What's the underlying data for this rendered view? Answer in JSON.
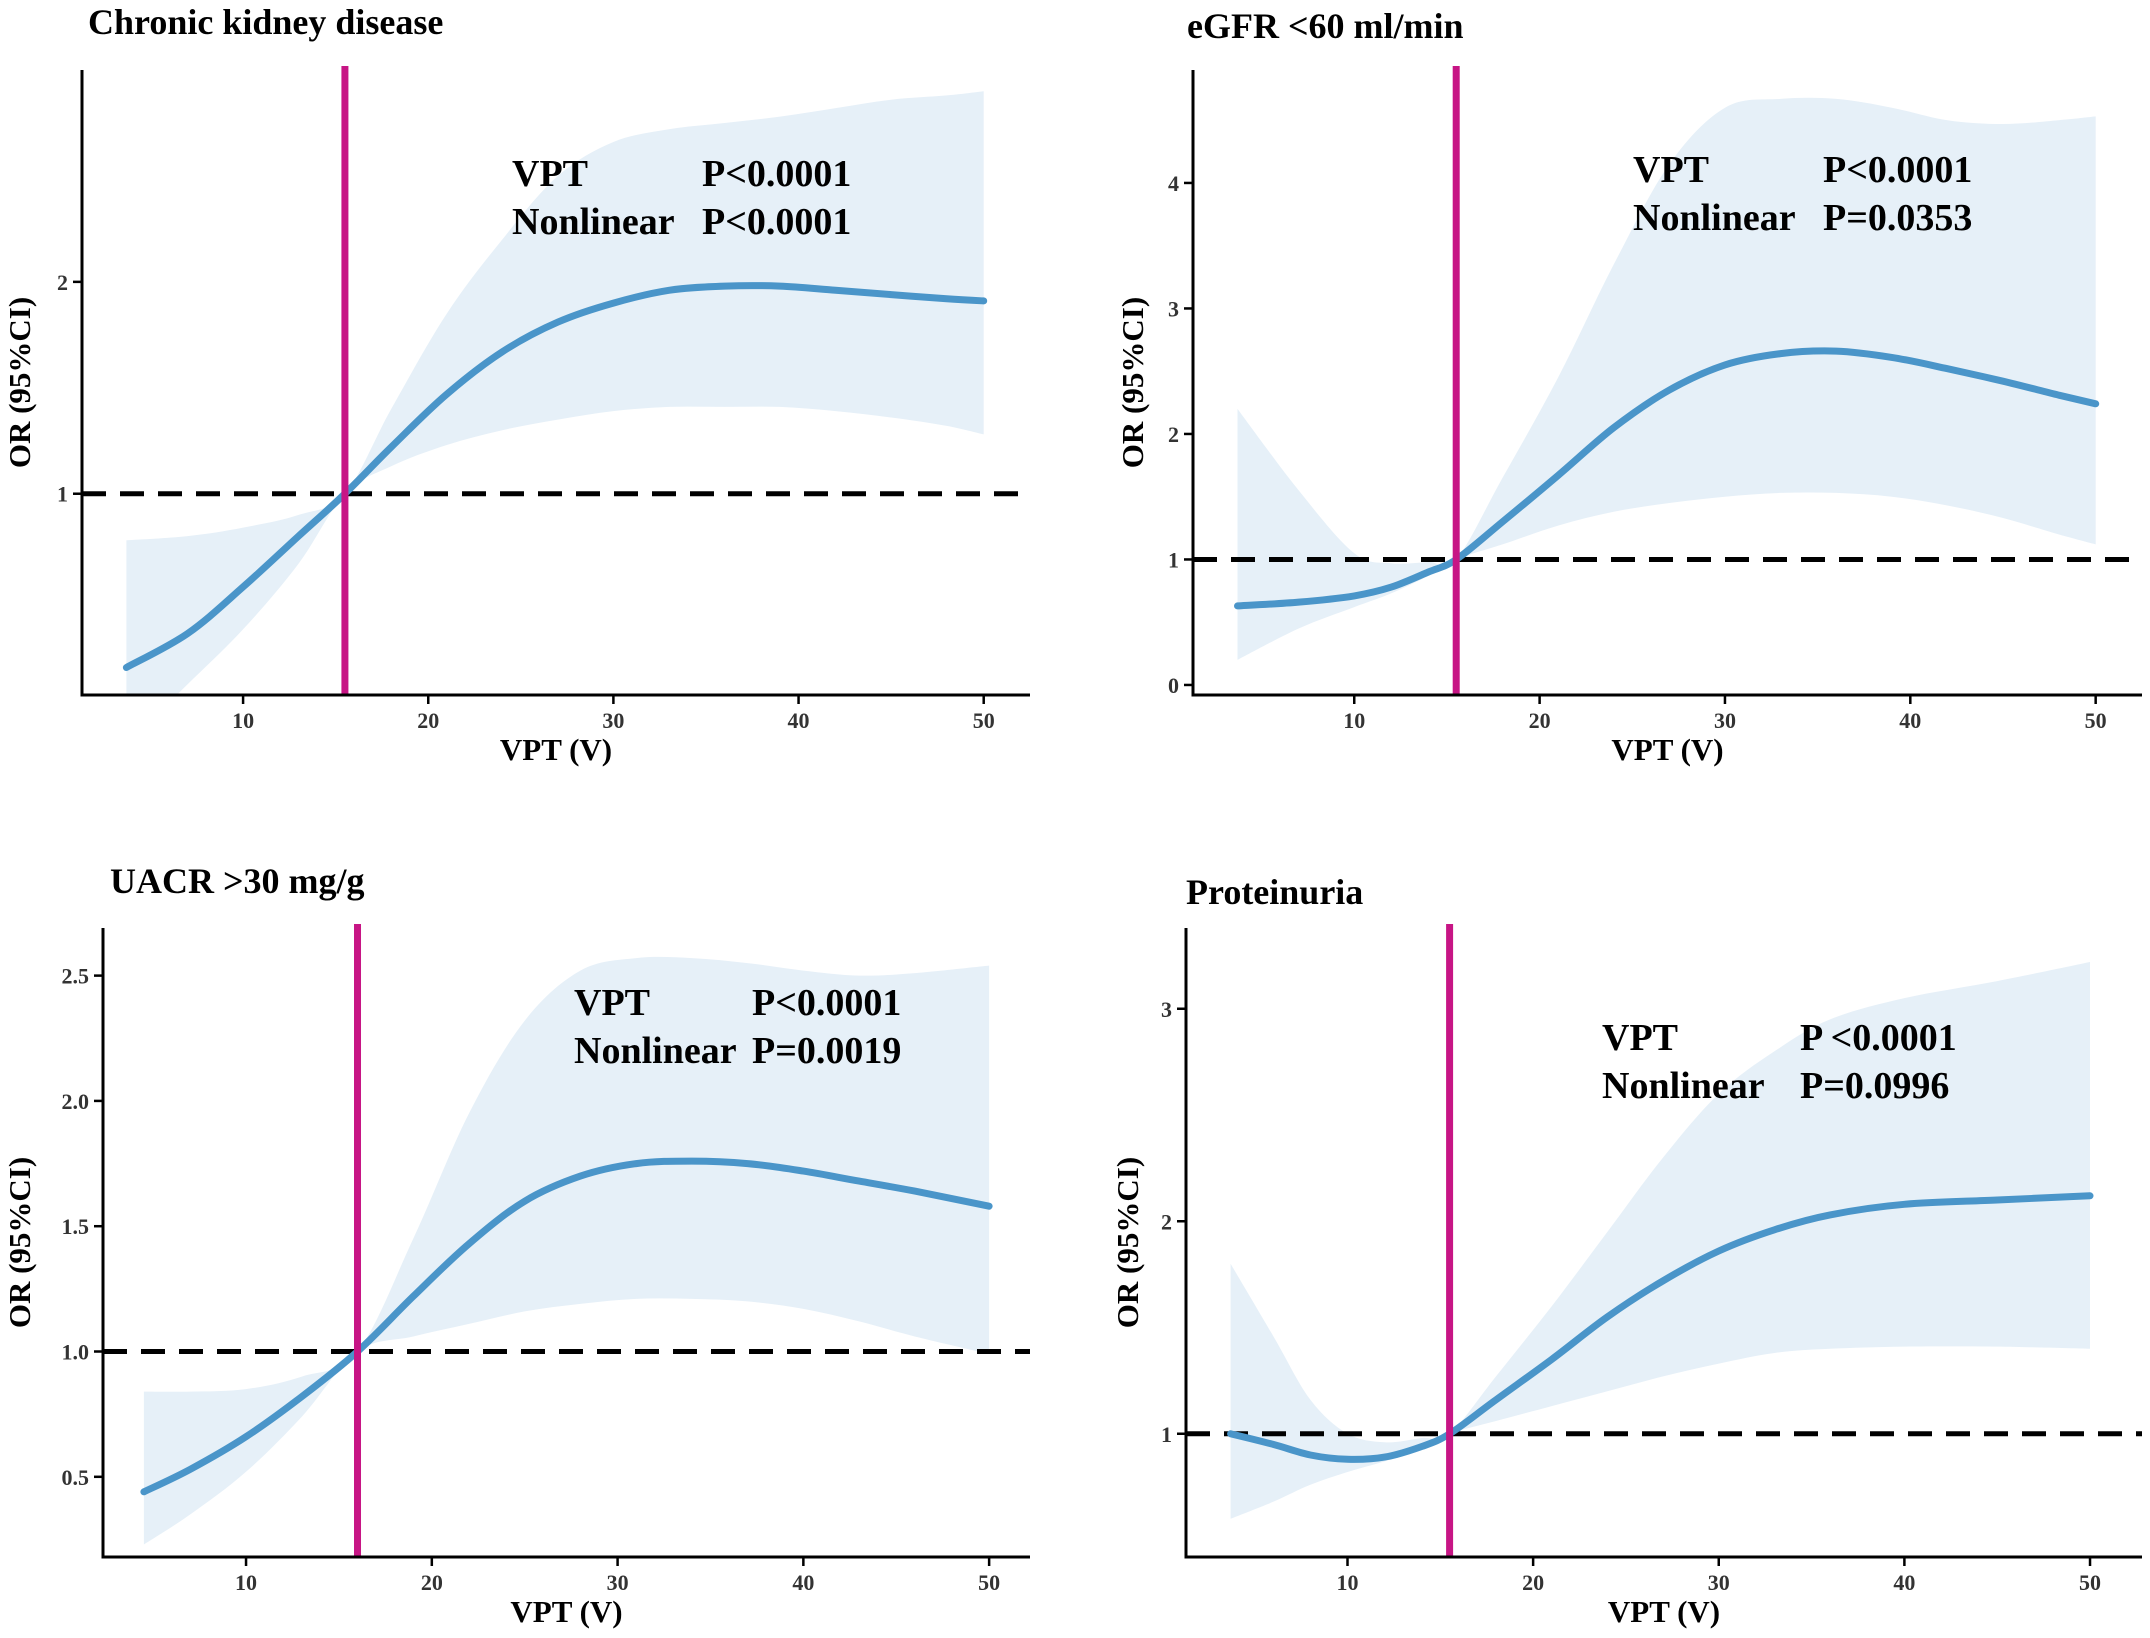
{
  "colors": {
    "curve": "#4a95c9",
    "band": "#e6f0f8",
    "reference_vline": "#c71585",
    "reference_hline": "#000000",
    "axis": "#000000"
  },
  "chart_data": [
    {
      "type": "line",
      "title": "Chronic kidney disease",
      "xlabel": "VPT (V)",
      "ylabel": "OR (95%CI)",
      "xlim": [
        1.3,
        52.5
      ],
      "ylim": [
        0.05,
        3.0
      ],
      "xticks": [
        10,
        20,
        30,
        40,
        50
      ],
      "yticks": [
        1,
        2
      ],
      "reference_x": 15.5,
      "reference_y": 1,
      "annotation": {
        "row1_label": "VPT",
        "row1_value": "P<0.0001",
        "row2_label": "Nonlinear",
        "row2_value": "P<0.0001"
      },
      "x": [
        3.7,
        7,
        10,
        13,
        15.5,
        18,
        21,
        24,
        27,
        30,
        33,
        36,
        39,
        42,
        45,
        48,
        50
      ],
      "y": [
        0.18,
        0.34,
        0.56,
        0.8,
        1.0,
        1.22,
        1.47,
        1.67,
        1.81,
        1.9,
        1.96,
        1.98,
        1.98,
        1.96,
        1.94,
        1.92,
        1.91
      ],
      "lower": [
        -0.18,
        0.1,
        0.36,
        0.67,
        1.0,
        1.13,
        1.23,
        1.3,
        1.35,
        1.39,
        1.41,
        1.41,
        1.41,
        1.39,
        1.36,
        1.32,
        1.28
      ],
      "upper": [
        0.78,
        0.8,
        0.84,
        0.9,
        1.0,
        1.4,
        1.85,
        2.2,
        2.5,
        2.66,
        2.72,
        2.75,
        2.78,
        2.82,
        2.86,
        2.88,
        2.9
      ]
    },
    {
      "type": "line",
      "title": "eGFR <60 ml/min",
      "xlabel": "VPT (V)",
      "ylabel": "OR (95%CI)",
      "xlim": [
        1.3,
        52.5
      ],
      "ylim": [
        -0.08,
        4.9
      ],
      "xticks": [
        10,
        20,
        30,
        40,
        50
      ],
      "yticks": [
        0,
        1,
        2,
        3,
        4
      ],
      "reference_x": 15.5,
      "reference_y": 1,
      "annotation": {
        "row1_label": "VPT",
        "row1_value": "P<0.0001",
        "row2_label": "Nonlinear",
        "row2_value": "P=0.0353"
      },
      "x": [
        3.7,
        7,
        10,
        12,
        14,
        15.5,
        18,
        21,
        24,
        27,
        30,
        33,
        36,
        39,
        42,
        45,
        48,
        50
      ],
      "y": [
        0.63,
        0.66,
        0.71,
        0.78,
        0.9,
        1.0,
        1.3,
        1.67,
        2.05,
        2.35,
        2.55,
        2.64,
        2.66,
        2.61,
        2.52,
        2.42,
        2.31,
        2.24
      ],
      "lower": [
        0.2,
        0.45,
        0.62,
        0.73,
        0.87,
        1.0,
        1.12,
        1.27,
        1.38,
        1.45,
        1.5,
        1.53,
        1.53,
        1.5,
        1.43,
        1.33,
        1.2,
        1.12
      ],
      "upper": [
        2.2,
        1.55,
        1.05,
        0.97,
        0.98,
        1.0,
        1.65,
        2.45,
        3.35,
        4.15,
        4.6,
        4.67,
        4.67,
        4.6,
        4.5,
        4.47,
        4.5,
        4.53
      ]
    },
    {
      "type": "line",
      "title": "UACR >30 mg/g",
      "xlabel": "VPT (V)",
      "ylabel": "OR (95%CI)",
      "xlim": [
        2.3,
        52.2
      ],
      "ylim": [
        0.18,
        2.69
      ],
      "xticks": [
        10,
        20,
        30,
        40,
        50
      ],
      "yticks": [
        "0.5",
        "1.0",
        "1.5",
        "2.0",
        "2.5"
      ],
      "reference_x": 16,
      "reference_y": 1,
      "annotation": {
        "row1_label": "VPT",
        "row1_value": "P<0.0001",
        "row2_label": "Nonlinear",
        "row2_value": "P=0.0019"
      },
      "x": [
        4.5,
        7,
        10,
        13,
        16,
        19,
        22,
        25,
        28,
        31,
        34,
        37,
        40,
        43,
        46,
        50
      ],
      "y": [
        0.44,
        0.53,
        0.66,
        0.82,
        1.0,
        1.22,
        1.43,
        1.6,
        1.7,
        1.75,
        1.76,
        1.75,
        1.72,
        1.68,
        1.64,
        1.58
      ],
      "lower": [
        0.23,
        0.35,
        0.52,
        0.74,
        1.0,
        1.06,
        1.11,
        1.16,
        1.19,
        1.21,
        1.21,
        1.2,
        1.17,
        1.12,
        1.06,
        0.99
      ],
      "upper": [
        0.84,
        0.84,
        0.85,
        0.9,
        1.0,
        1.45,
        1.95,
        2.32,
        2.52,
        2.57,
        2.57,
        2.55,
        2.52,
        2.5,
        2.51,
        2.54
      ]
    },
    {
      "type": "line",
      "title": "Proteinuria",
      "xlabel": "VPT (V)",
      "ylabel": "OR (95%CI)",
      "xlim": [
        1.3,
        52.8
      ],
      "ylim": [
        0.42,
        3.38
      ],
      "xticks": [
        10,
        20,
        30,
        40,
        50
      ],
      "yticks": [
        1,
        2,
        3
      ],
      "reference_x": 15.5,
      "reference_y": 1,
      "annotation": {
        "row1_label": "VPT",
        "row1_value": "P <0.0001",
        "row2_label": "Nonlinear",
        "row2_value": "P=0.0996"
      },
      "x": [
        3.7,
        6,
        8,
        10,
        12,
        14,
        15.5,
        18,
        21,
        24,
        27,
        30,
        33,
        36,
        40,
        45,
        50
      ],
      "y": [
        1.0,
        0.95,
        0.9,
        0.88,
        0.89,
        0.94,
        1.0,
        1.16,
        1.35,
        1.55,
        1.72,
        1.86,
        1.96,
        2.03,
        2.08,
        2.1,
        2.12
      ],
      "lower": [
        0.6,
        0.68,
        0.76,
        0.82,
        0.87,
        0.93,
        1.0,
        1.06,
        1.13,
        1.2,
        1.27,
        1.33,
        1.38,
        1.4,
        1.41,
        1.41,
        1.4
      ],
      "upper": [
        1.8,
        1.46,
        1.16,
        1.0,
        0.96,
        0.98,
        1.0,
        1.27,
        1.6,
        1.95,
        2.3,
        2.6,
        2.8,
        2.95,
        3.05,
        3.13,
        3.22
      ]
    }
  ]
}
